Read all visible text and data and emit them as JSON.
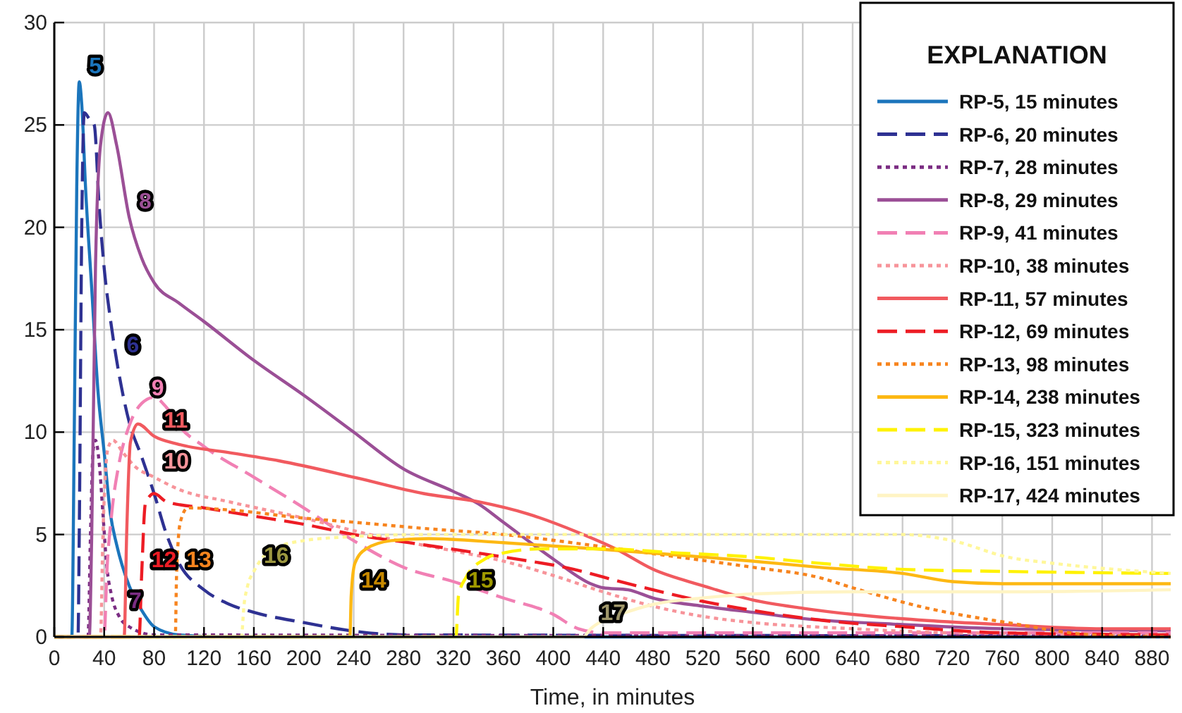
{
  "chart_data": {
    "type": "line",
    "xlabel": "Time, in minutes",
    "legend_title": "EXPLANATION",
    "legend": "top right",
    "grid": true,
    "xlim": [
      0,
      895
    ],
    "ylim": [
      0,
      30
    ],
    "xticks": [
      0,
      40,
      80,
      120,
      160,
      200,
      240,
      280,
      320,
      360,
      400,
      440,
      480,
      520,
      560,
      600,
      640,
      680,
      720,
      760,
      800,
      840,
      880
    ],
    "yticks": [
      0,
      5,
      10,
      15,
      20,
      25,
      30
    ],
    "series": [
      {
        "name": "RP-5, 15 minutes",
        "color": "#1b75bc",
        "line_style": "solid",
        "x": [
          0,
          14,
          16,
          18,
          20,
          22,
          25,
          30,
          35,
          40,
          45,
          50,
          60,
          70,
          80,
          100,
          140,
          895
        ],
        "values": [
          0,
          0,
          10,
          22,
          27.1,
          26,
          22,
          17,
          12,
          9,
          6,
          4.5,
          2.5,
          1.3,
          0.5,
          0.1,
          0,
          0
        ]
      },
      {
        "name": "RP-6, 20 minutes",
        "color": "#2e3192",
        "line_style": "dashed",
        "x": [
          0,
          19,
          20,
          22,
          24,
          28,
          32,
          36,
          40,
          45,
          50,
          60,
          70,
          80,
          90,
          100,
          120,
          140,
          160,
          200,
          238,
          280,
          895
        ],
        "values": [
          0,
          0,
          5,
          20,
          25.6,
          25.3,
          25,
          21,
          18,
          15.5,
          13.5,
          10.5,
          8.8,
          7,
          5,
          3.6,
          2.3,
          1.6,
          1.2,
          0.7,
          0.3,
          0.1,
          0.05
        ]
      },
      {
        "name": "RP-7, 28 minutes",
        "color": "#7b2d83",
        "line_style": "dotted",
        "x": [
          0,
          27,
          29,
          31,
          33,
          36,
          39,
          42,
          46,
          52,
          60,
          80,
          895
        ],
        "values": [
          0,
          0,
          5,
          9,
          9.6,
          8.5,
          6,
          3.5,
          2,
          1,
          0.5,
          0.1,
          0.05
        ]
      },
      {
        "name": "RP-8, 29 minutes",
        "color": "#9b4f96",
        "line_style": "solid",
        "x": [
          0,
          28,
          30,
          33,
          37,
          43,
          50,
          60,
          70,
          80,
          100,
          120,
          160,
          200,
          240,
          280,
          320,
          340,
          360,
          400,
          430,
          440,
          460,
          480,
          520,
          560,
          600,
          680,
          760,
          895
        ],
        "values": [
          0,
          0,
          5,
          18,
          24,
          25.6,
          24,
          20.5,
          18.5,
          17.3,
          16.3,
          15.4,
          13.5,
          11.8,
          10,
          8.2,
          7.1,
          6.5,
          5.6,
          3.8,
          2.6,
          2.4,
          2.3,
          1.9,
          1.5,
          1.2,
          0.9,
          0.6,
          0.4,
          0.3
        ]
      },
      {
        "name": "RP-9, 41 minutes",
        "color": "#f180b4",
        "line_style": "dashed",
        "x": [
          0,
          40,
          42,
          46,
          52,
          60,
          70,
          80,
          90,
          100,
          120,
          160,
          200,
          240,
          280,
          320,
          360,
          400,
          420,
          440,
          895
        ],
        "values": [
          0,
          0,
          3,
          6,
          8.5,
          10.3,
          11.4,
          11.7,
          11.2,
          10.3,
          9.3,
          7.8,
          6.3,
          4.7,
          3.4,
          2.7,
          1.9,
          1.1,
          0.4,
          0.2,
          0.2
        ]
      },
      {
        "name": "RP-10, 38 minutes",
        "color": "#f7949a",
        "line_style": "dotted",
        "x": [
          0,
          37,
          39,
          43,
          47,
          55,
          65,
          80,
          100,
          140,
          200,
          260,
          320,
          360,
          400,
          440,
          480,
          520,
          560,
          640,
          720,
          895
        ],
        "values": [
          0,
          0,
          5,
          9.2,
          9.6,
          9,
          8.3,
          7.8,
          7.2,
          6.6,
          5.8,
          4.9,
          4.2,
          3.7,
          3,
          2.2,
          1.5,
          1,
          0.7,
          0.4,
          0.2,
          0.1
        ]
      },
      {
        "name": "RP-11, 57 minutes",
        "color": "#f15a5f",
        "line_style": "solid",
        "x": [
          0,
          56,
          58,
          61,
          67,
          80,
          100,
          140,
          180,
          240,
          296,
          340,
          380,
          420,
          450,
          480,
          520,
          560,
          600,
          640,
          700,
          760,
          840,
          895
        ],
        "values": [
          0,
          0,
          5,
          9.5,
          10.4,
          9.8,
          9.4,
          9,
          8.6,
          7.8,
          7,
          6.6,
          6,
          5.1,
          4.3,
          3.3,
          2.5,
          1.8,
          1.4,
          1.1,
          0.8,
          0.6,
          0.4,
          0.4
        ]
      },
      {
        "name": "RP-12, 69 minutes",
        "color": "#ed1c24",
        "line_style": "dashed",
        "x": [
          0,
          68,
          70,
          73,
          80,
          90,
          120,
          160,
          200,
          240,
          296,
          360,
          409,
          460,
          523,
          580,
          617,
          680,
          760,
          895
        ],
        "values": [
          0,
          0,
          3,
          6.5,
          7,
          6.6,
          6.3,
          5.9,
          5.5,
          5,
          4.5,
          3.9,
          3.4,
          2.6,
          1.7,
          1.1,
          0.8,
          0.5,
          0.2,
          0.1
        ]
      },
      {
        "name": "RP-13, 98 minutes",
        "color": "#f7841e",
        "line_style": "dotted",
        "x": [
          0,
          97,
          98,
          101,
          107,
          140,
          200,
          240,
          296,
          360,
          440,
          500,
          560,
          613,
          640,
          700,
          764,
          832,
          895
        ],
        "values": [
          0,
          0,
          3,
          5.6,
          6.3,
          6.2,
          5.8,
          5.6,
          5.3,
          5,
          4.4,
          3.9,
          3.4,
          2.9,
          2.4,
          1.4,
          0.7,
          0.1,
          0
        ]
      },
      {
        "name": "RP-14, 238 minutes",
        "color": "#fdb813",
        "line_style": "solid",
        "x": [
          0,
          237,
          238,
          241,
          250,
          270,
          300,
          360,
          434,
          500,
          560,
          613,
          680,
          720,
          760,
          895
        ],
        "values": [
          0,
          0,
          2,
          3.6,
          4.3,
          4.7,
          4.8,
          4.6,
          4.3,
          4,
          3.7,
          3.4,
          3.1,
          2.7,
          2.6,
          2.6
        ]
      },
      {
        "name": "RP-15, 323 minutes",
        "color": "#fff200",
        "line_style": "dashed",
        "x": [
          0,
          322,
          324,
          330,
          345,
          360,
          390,
          440,
          500,
          560,
          613,
          680,
          760,
          895
        ],
        "values": [
          0,
          0,
          2,
          2.9,
          3.8,
          4.1,
          4.3,
          4.3,
          4.1,
          3.9,
          3.6,
          3.3,
          3.2,
          3.1
        ]
      },
      {
        "name": "RP-16, 151 minutes",
        "color": "#fff79a",
        "line_style": "dotted",
        "x": [
          0,
          150,
          152,
          155,
          160,
          166,
          180,
          200,
          240,
          300,
          400,
          500,
          600,
          680,
          720,
          764,
          800,
          895
        ],
        "values": [
          0,
          0,
          1.5,
          2.5,
          3.2,
          3.8,
          4.4,
          4.7,
          4.9,
          5,
          5,
          5,
          5,
          5,
          4.7,
          3.9,
          3.6,
          3.1
        ]
      },
      {
        "name": "RP-17, 424 minutes",
        "color": "#fff4c4",
        "line_style": "solid",
        "x": [
          0,
          424,
          430,
          440,
          451,
          481,
          520,
          560,
          636,
          760,
          895
        ],
        "values": [
          0,
          0,
          0.4,
          0.8,
          1.05,
          1.6,
          1.9,
          2.1,
          2.2,
          2.2,
          2.3
        ]
      }
    ],
    "annotations": [
      {
        "text": "5",
        "x": 20,
        "y": 27.1
      },
      {
        "text": "6",
        "x": 50,
        "y": 13.5
      },
      {
        "text": "7",
        "x": 52,
        "y": 1
      },
      {
        "text": "8",
        "x": 60,
        "y": 20.5
      },
      {
        "text": "9",
        "x": 70,
        "y": 11.4
      },
      {
        "text": "10",
        "x": 80,
        "y": 7.8
      },
      {
        "text": "11",
        "x": 80,
        "y": 9.8
      },
      {
        "text": "12",
        "x": 70,
        "y": 3
      },
      {
        "text": "13",
        "x": 98,
        "y": 3
      },
      {
        "text": "14",
        "x": 238,
        "y": 2
      },
      {
        "text": "15",
        "x": 324,
        "y": 2
      },
      {
        "text": "16",
        "x": 160,
        "y": 3.2
      },
      {
        "text": "17",
        "x": 430,
        "y": 0.4
      }
    ]
  }
}
